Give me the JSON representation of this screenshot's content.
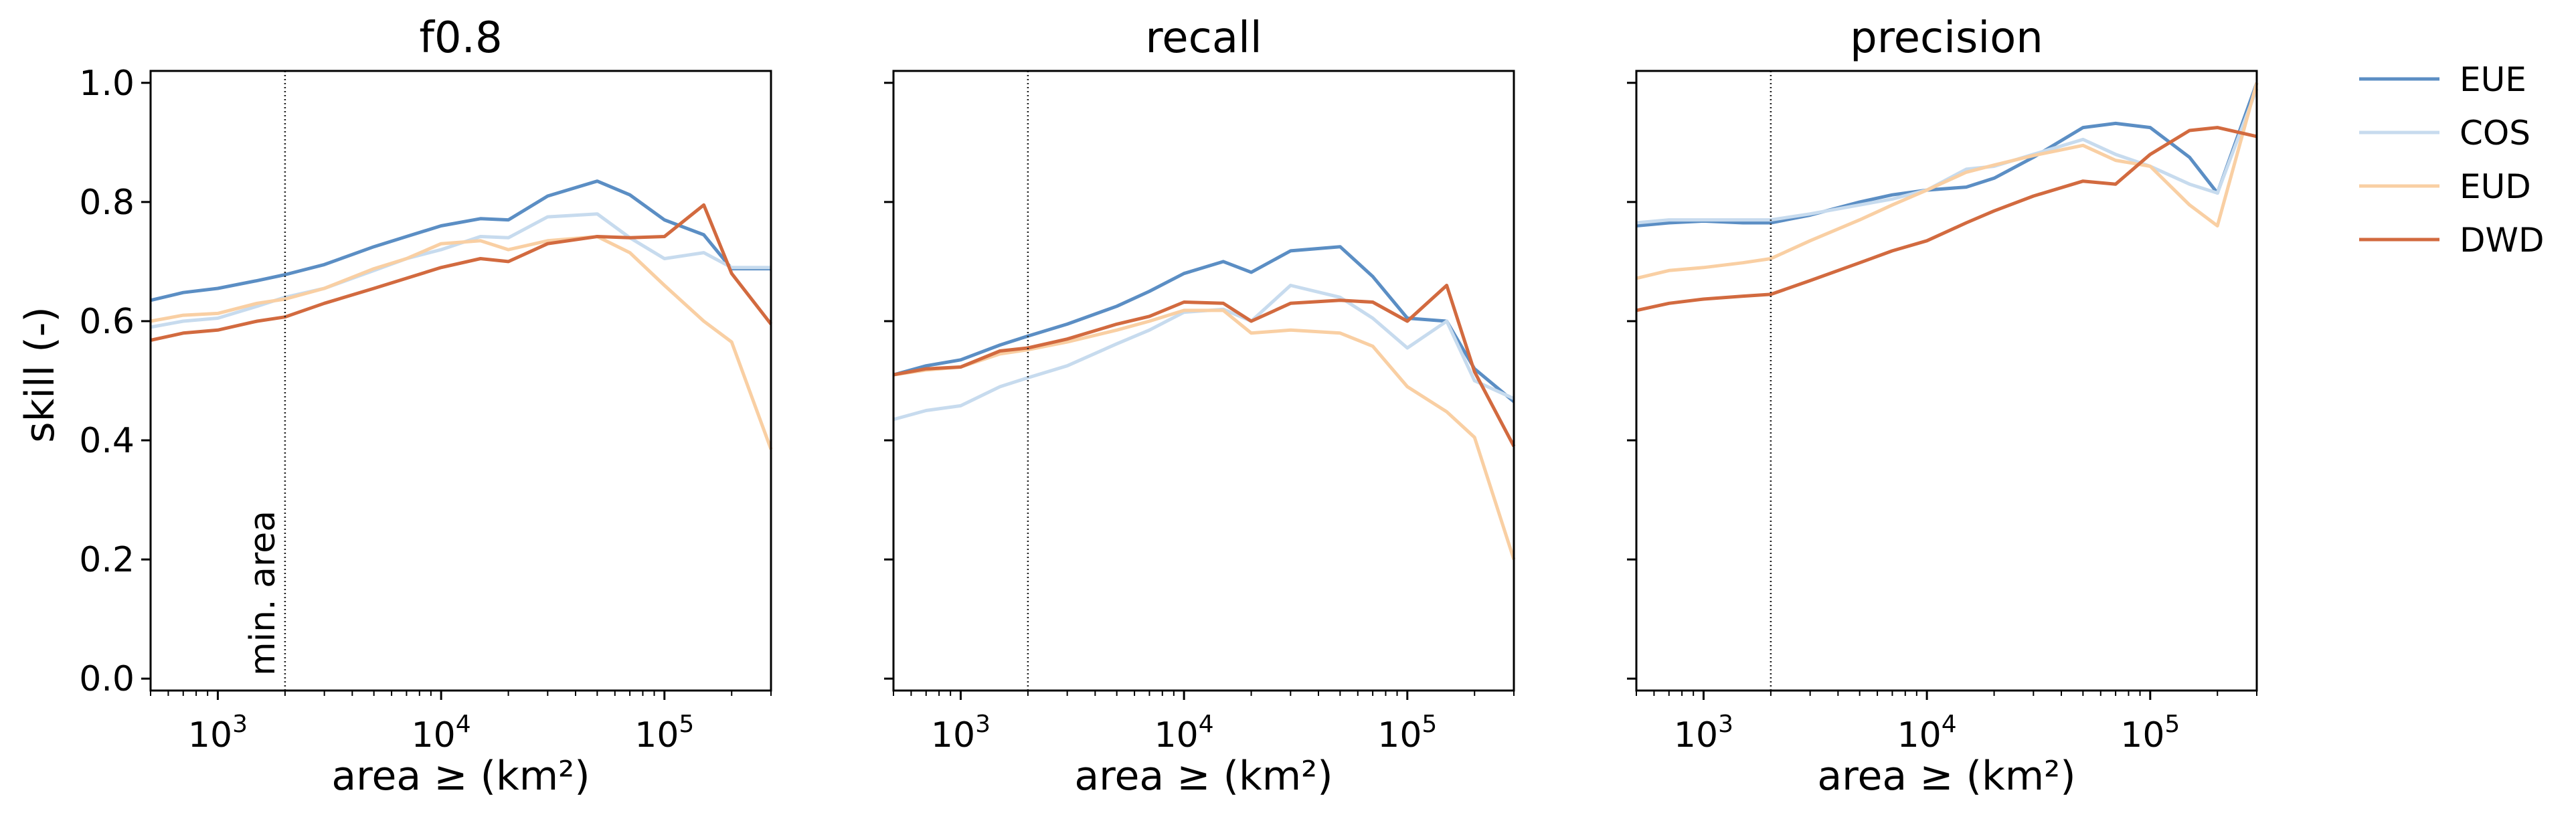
{
  "figure": {
    "ylabel": "skill (-)",
    "legend": {
      "placement": "right",
      "entries": [
        {
          "label": "EUE",
          "color": "#5b8ec4"
        },
        {
          "label": "COS",
          "color": "#c7dbee"
        },
        {
          "label": "EUD",
          "color": "#f9cfa3"
        },
        {
          "label": "DWD",
          "color": "#d26a3f"
        }
      ]
    },
    "min_area_annotation": "min. area"
  },
  "chart_data": [
    {
      "type": "line",
      "title": "f0.8",
      "xlabel": "area ≥ (km²)",
      "ylabel": "skill (-)",
      "xscale": "log",
      "xlim": [
        500,
        300000
      ],
      "ylim": [
        -0.02,
        1.02
      ],
      "xticks": [
        {
          "value": 1000,
          "base": "10",
          "exp": "3"
        },
        {
          "value": 10000,
          "base": "10",
          "exp": "4"
        },
        {
          "value": 100000,
          "base": "10",
          "exp": "5"
        }
      ],
      "yticks": [
        "0.0",
        "0.2",
        "0.4",
        "0.6",
        "0.8",
        "1.0"
      ],
      "vline_x": 2000,
      "annotation": "min. area",
      "x": [
        500,
        700,
        1000,
        1500,
        2000,
        3000,
        5000,
        7000,
        10000,
        15000,
        20000,
        30000,
        50000,
        70000,
        100000,
        150000,
        200000,
        300000
      ],
      "series": [
        {
          "name": "EUE",
          "color": "#5b8ec4",
          "values": [
            0.635,
            0.648,
            0.655,
            0.668,
            0.678,
            0.695,
            0.725,
            0.742,
            0.76,
            0.772,
            0.77,
            0.81,
            0.835,
            0.812,
            0.77,
            0.745,
            0.688,
            0.688
          ]
        },
        {
          "name": "COS",
          "color": "#c7dbee",
          "values": [
            0.59,
            0.6,
            0.605,
            0.625,
            0.64,
            0.655,
            0.685,
            0.705,
            0.72,
            0.742,
            0.74,
            0.775,
            0.78,
            0.74,
            0.705,
            0.715,
            0.69,
            0.69
          ]
        },
        {
          "name": "EUD",
          "color": "#f9cfa3",
          "values": [
            0.6,
            0.61,
            0.613,
            0.63,
            0.637,
            0.655,
            0.688,
            0.705,
            0.73,
            0.735,
            0.72,
            0.735,
            0.742,
            0.715,
            0.66,
            0.6,
            0.565,
            0.385
          ]
        },
        {
          "name": "DWD",
          "color": "#d26a3f",
          "values": [
            0.568,
            0.58,
            0.585,
            0.6,
            0.607,
            0.63,
            0.655,
            0.672,
            0.69,
            0.705,
            0.7,
            0.73,
            0.742,
            0.74,
            0.742,
            0.795,
            0.68,
            0.595
          ]
        }
      ]
    },
    {
      "type": "line",
      "title": "recall",
      "xlabel": "area ≥ (km²)",
      "ylabel": "",
      "xscale": "log",
      "xlim": [
        500,
        300000
      ],
      "ylim": [
        -0.02,
        1.02
      ],
      "xticks": [
        {
          "value": 1000,
          "base": "10",
          "exp": "3"
        },
        {
          "value": 10000,
          "base": "10",
          "exp": "4"
        },
        {
          "value": 100000,
          "base": "10",
          "exp": "5"
        }
      ],
      "yticks": [
        "0.0",
        "0.2",
        "0.4",
        "0.6",
        "0.8",
        "1.0"
      ],
      "vline_x": 2000,
      "x": [
        500,
        700,
        1000,
        1500,
        2000,
        3000,
        5000,
        7000,
        10000,
        15000,
        20000,
        30000,
        50000,
        70000,
        100000,
        150000,
        200000,
        300000
      ],
      "series": [
        {
          "name": "EUE",
          "color": "#5b8ec4",
          "values": [
            0.51,
            0.525,
            0.535,
            0.56,
            0.575,
            0.595,
            0.625,
            0.65,
            0.68,
            0.7,
            0.682,
            0.718,
            0.725,
            0.675,
            0.605,
            0.6,
            0.52,
            0.465
          ]
        },
        {
          "name": "COS",
          "color": "#c7dbee",
          "values": [
            0.435,
            0.45,
            0.458,
            0.49,
            0.505,
            0.525,
            0.562,
            0.585,
            0.615,
            0.62,
            0.6,
            0.66,
            0.64,
            0.605,
            0.555,
            0.6,
            0.5,
            0.47
          ]
        },
        {
          "name": "EUD",
          "color": "#f9cfa3",
          "values": [
            0.51,
            0.518,
            0.523,
            0.545,
            0.552,
            0.565,
            0.585,
            0.6,
            0.618,
            0.618,
            0.58,
            0.585,
            0.58,
            0.558,
            0.49,
            0.448,
            0.405,
            0.2
          ]
        },
        {
          "name": "DWD",
          "color": "#d26a3f",
          "values": [
            0.51,
            0.52,
            0.523,
            0.55,
            0.555,
            0.57,
            0.595,
            0.608,
            0.632,
            0.63,
            0.6,
            0.63,
            0.635,
            0.632,
            0.6,
            0.66,
            0.515,
            0.39
          ]
        }
      ]
    },
    {
      "type": "line",
      "title": "precision",
      "xlabel": "area ≥ (km²)",
      "ylabel": "",
      "xscale": "log",
      "xlim": [
        500,
        300000
      ],
      "ylim": [
        -0.02,
        1.02
      ],
      "xticks": [
        {
          "value": 1000,
          "base": "10",
          "exp": "3"
        },
        {
          "value": 10000,
          "base": "10",
          "exp": "4"
        },
        {
          "value": 100000,
          "base": "10",
          "exp": "5"
        }
      ],
      "yticks": [
        "0.0",
        "0.2",
        "0.4",
        "0.6",
        "0.8",
        "1.0"
      ],
      "vline_x": 2000,
      "x": [
        500,
        700,
        1000,
        1500,
        2000,
        3000,
        5000,
        7000,
        10000,
        15000,
        20000,
        30000,
        50000,
        70000,
        100000,
        150000,
        200000,
        300000
      ],
      "series": [
        {
          "name": "EUE",
          "color": "#5b8ec4",
          "values": [
            0.76,
            0.765,
            0.768,
            0.765,
            0.765,
            0.778,
            0.8,
            0.812,
            0.82,
            0.825,
            0.84,
            0.875,
            0.925,
            0.932,
            0.925,
            0.875,
            0.815,
            1.0
          ]
        },
        {
          "name": "COS",
          "color": "#c7dbee",
          "values": [
            0.765,
            0.77,
            0.77,
            0.77,
            0.77,
            0.78,
            0.795,
            0.805,
            0.82,
            0.855,
            0.86,
            0.88,
            0.905,
            0.88,
            0.86,
            0.83,
            0.815,
            0.99
          ]
        },
        {
          "name": "EUD",
          "color": "#f9cfa3",
          "values": [
            0.672,
            0.685,
            0.69,
            0.698,
            0.705,
            0.735,
            0.77,
            0.795,
            0.82,
            0.85,
            0.862,
            0.878,
            0.895,
            0.87,
            0.86,
            0.795,
            0.76,
            1.0
          ]
        },
        {
          "name": "DWD",
          "color": "#d26a3f",
          "values": [
            0.618,
            0.63,
            0.637,
            0.642,
            0.645,
            0.668,
            0.698,
            0.718,
            0.735,
            0.765,
            0.785,
            0.81,
            0.835,
            0.83,
            0.88,
            0.92,
            0.925,
            0.91
          ]
        }
      ]
    }
  ]
}
